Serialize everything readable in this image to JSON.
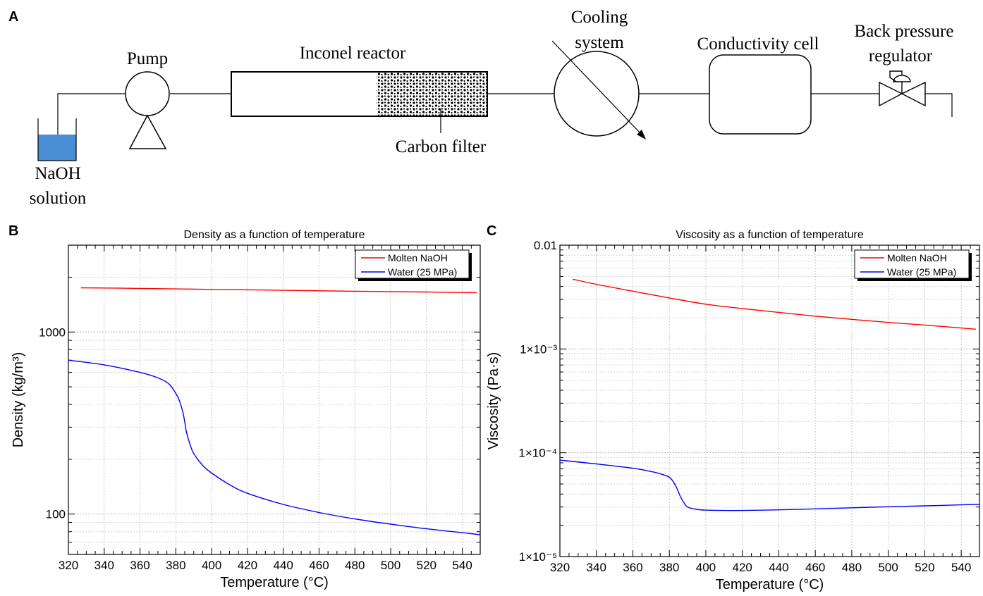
{
  "panels": {
    "a": "A",
    "b": "B",
    "c": "C"
  },
  "diagram": {
    "naoh_line1": "NaOH",
    "naoh_line2": "solution",
    "pump": "Pump",
    "reactor": "Inconel reactor",
    "filter": "Carbon filter",
    "cooling_line1": "Cooling",
    "cooling_line2": "system",
    "conductivity": "Conductivity cell",
    "bpr_line1": "Back pressure",
    "bpr_line2": "regulator",
    "colors": {
      "solution": "#4a8fd4"
    }
  },
  "chart_data": [
    {
      "type": "line",
      "title": "Density as a function of temperature",
      "xlabel": "Temperature (°C)",
      "ylabel": "Density (kg/m³)",
      "xlim": [
        320,
        550
      ],
      "ylim": [
        60,
        3000
      ],
      "yscale": "log",
      "xticks": [
        "320",
        "340",
        "360",
        "380",
        "400",
        "420",
        "440",
        "460",
        "480",
        "500",
        "520",
        "540"
      ],
      "yticks": [
        "100",
        "1000"
      ],
      "grid": true,
      "legend_position": "top-right",
      "series": [
        {
          "name": "Molten NaOH",
          "color": "#ff0000",
          "x": [
            327,
            350,
            380,
            400,
            440,
            480,
            520,
            548
          ],
          "y": [
            1750,
            1740,
            1725,
            1715,
            1695,
            1675,
            1658,
            1645
          ]
        },
        {
          "name": "Water (25 MPa)",
          "color": "#0000ff",
          "x": [
            320,
            340,
            360,
            370,
            376,
            380,
            382,
            384,
            385,
            386,
            388,
            390,
            395,
            400,
            410,
            420,
            440,
            460,
            480,
            500,
            520,
            540,
            550
          ],
          "y": [
            700,
            660,
            600,
            560,
            520,
            460,
            420,
            360,
            320,
            280,
            240,
            215,
            185,
            168,
            145,
            130,
            113,
            102,
            94,
            88,
            83,
            79,
            77
          ]
        }
      ]
    },
    {
      "type": "line",
      "title": "Viscosity as a function of temperature",
      "xlabel": "Temperature (°C)",
      "ylabel": "Viscosity (Pa·s)",
      "xlim": [
        320,
        550
      ],
      "ylim": [
        1e-05,
        0.01
      ],
      "yscale": "log",
      "xticks": [
        "320",
        "340",
        "360",
        "380",
        "400",
        "420",
        "440",
        "460",
        "480",
        "500",
        "520",
        "540"
      ],
      "ytick_values": [
        1e-05,
        0.0001,
        0.001,
        0.01
      ],
      "ytick_labels": [
        "1×10⁻⁵",
        "1×10⁻⁴",
        "1×10⁻³",
        "0.01"
      ],
      "grid": true,
      "legend_position": "top-right",
      "series": [
        {
          "name": "Molten NaOH",
          "color": "#ff0000",
          "x": [
            327,
            340,
            360,
            380,
            400,
            420,
            440,
            460,
            480,
            500,
            520,
            548
          ],
          "y": [
            0.0047,
            0.0042,
            0.0036,
            0.0031,
            0.0027,
            0.00245,
            0.00225,
            0.00207,
            0.00193,
            0.0018,
            0.0017,
            0.00155
          ]
        },
        {
          "name": "Water (25 MPa)",
          "color": "#0000ff",
          "x": [
            320,
            340,
            360,
            370,
            376,
            380,
            382,
            384,
            386,
            388,
            390,
            395,
            400,
            410,
            420,
            440,
            460,
            480,
            500,
            520,
            540,
            550
          ],
          "y": [
            8.5e-05,
            7.8e-05,
            7.1e-05,
            6.6e-05,
            6.2e-05,
            5.8e-05,
            5.3e-05,
            4.6e-05,
            3.8e-05,
            3.3e-05,
            3e-05,
            2.85e-05,
            2.8e-05,
            2.78e-05,
            2.78e-05,
            2.82e-05,
            2.88e-05,
            2.95e-05,
            3.02e-05,
            3.08e-05,
            3.15e-05,
            3.18e-05
          ]
        }
      ]
    }
  ]
}
